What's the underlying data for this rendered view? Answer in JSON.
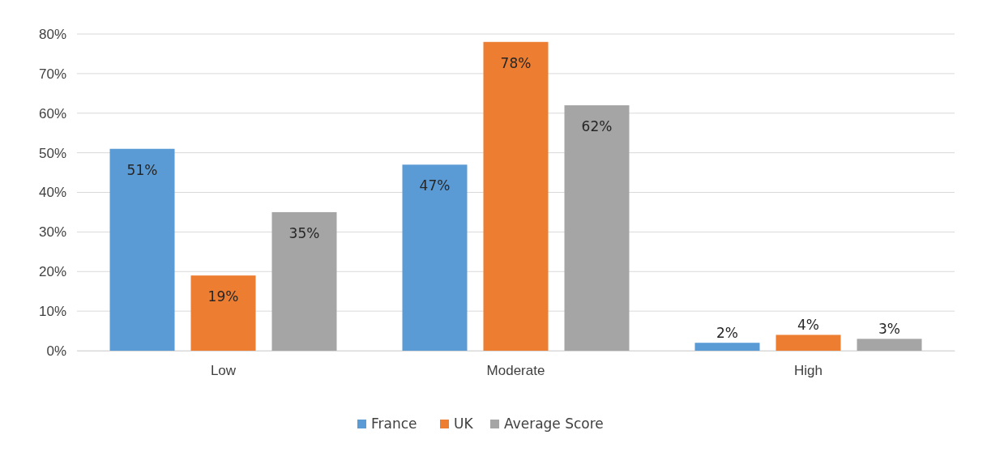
{
  "chart_data": {
    "type": "bar",
    "categories": [
      "Low",
      "Moderate",
      "High"
    ],
    "series": [
      {
        "name": "France",
        "color": "#5b9bd5",
        "values": [
          51,
          47,
          2
        ],
        "value_labels": [
          "51%",
          "47%",
          "2%"
        ]
      },
      {
        "name": "UK",
        "color": "#ed7d31",
        "values": [
          19,
          78,
          4
        ],
        "value_labels": [
          "19%",
          "78%",
          "4%"
        ]
      },
      {
        "name": "Average Score",
        "color": "#a5a5a5",
        "values": [
          35,
          62,
          3
        ],
        "value_labels": [
          "35%",
          "62%",
          "3%"
        ]
      }
    ],
    "ylim": [
      0,
      80
    ],
    "yticks": [
      {
        "value": 0,
        "label": "0%"
      },
      {
        "value": 10,
        "label": "10%"
      },
      {
        "value": 20,
        "label": "20%"
      },
      {
        "value": 30,
        "label": "30%"
      },
      {
        "value": 40,
        "label": "40%"
      },
      {
        "value": 50,
        "label": "50%"
      },
      {
        "value": 60,
        "label": "60%"
      },
      {
        "value": 70,
        "label": "70%"
      },
      {
        "value": 80,
        "label": "80%"
      }
    ],
    "grid": "y",
    "legend": "bottom"
  }
}
